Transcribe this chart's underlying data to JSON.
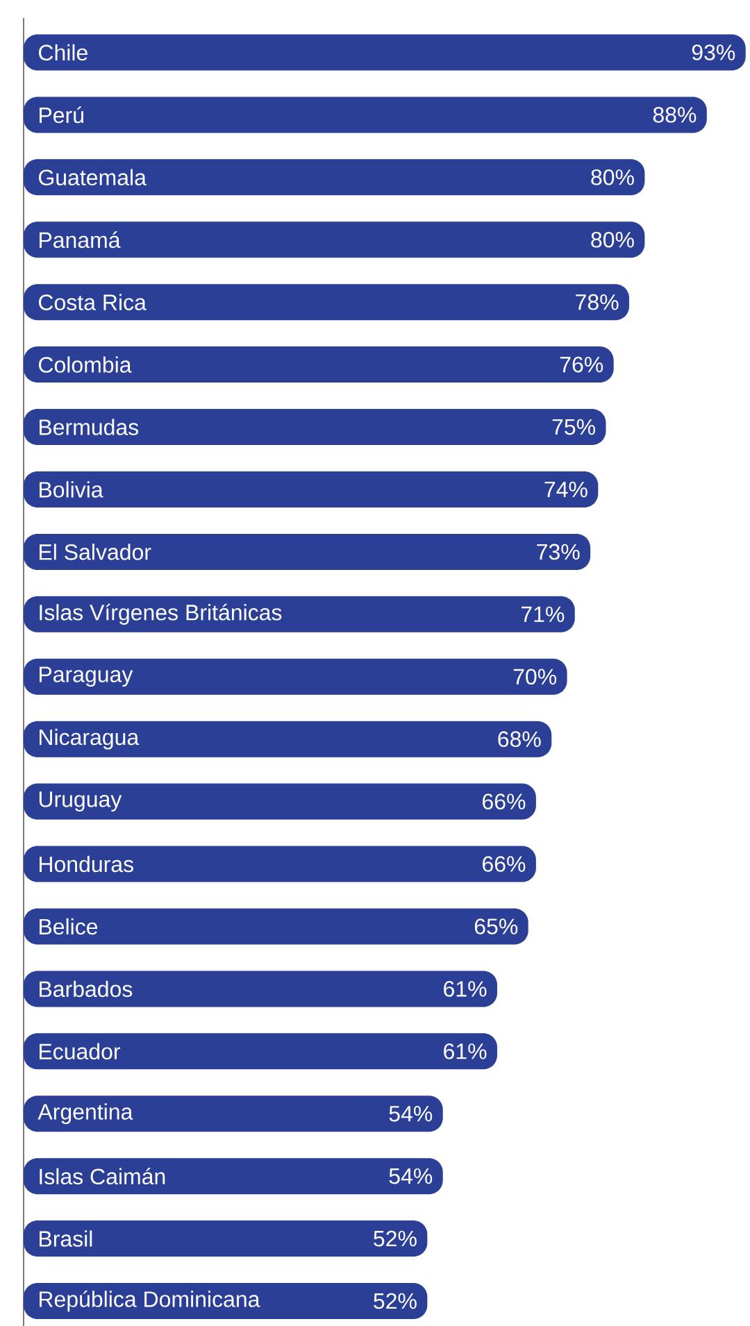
{
  "chart_data": {
    "type": "bar",
    "orientation": "horizontal",
    "color": "#2b3f96",
    "categories": [
      "Chile",
      "Perú",
      "Guatemala",
      "Panamá",
      "Costa Rica",
      "Colombia",
      "Bermudas",
      "Bolivia",
      "El Salvador",
      "Islas Vírgenes Británicas",
      "Paraguay",
      "Nicaragua",
      "Uruguay",
      "Honduras",
      "Belice",
      "Barbados",
      "Ecuador",
      "Argentina",
      "Islas Caimán",
      "Brasil",
      "República Dominicana"
    ],
    "values": [
      93,
      88,
      80,
      80,
      78,
      76,
      75,
      74,
      73,
      71,
      70,
      68,
      66,
      66,
      65,
      61,
      61,
      54,
      54,
      52,
      52
    ],
    "value_labels": [
      "93%",
      "88%",
      "80%",
      "80%",
      "78%",
      "76%",
      "75%",
      "74%",
      "73%",
      "71%",
      "70%",
      "68%",
      "66%",
      "66%",
      "65%",
      "61%",
      "61%",
      "54%",
      "54%",
      "52%",
      "52%"
    ]
  }
}
